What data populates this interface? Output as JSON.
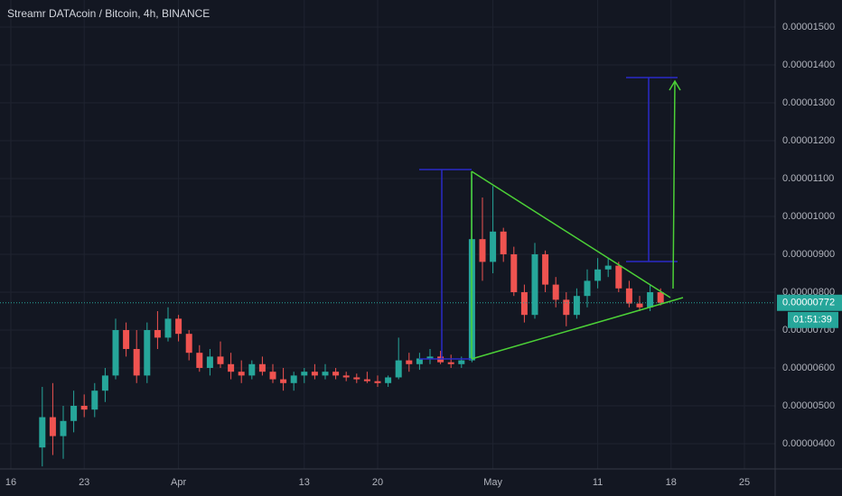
{
  "chart_data": {
    "type": "candlestick",
    "title": "Streamr DATAcoin / Bitcoin, 4h, BINANCE",
    "categories": [
      "16",
      null,
      null,
      null,
      null,
      null,
      null,
      "23",
      null,
      null,
      null,
      null,
      null,
      null,
      null,
      null,
      "Apr",
      null,
      null,
      null,
      null,
      null,
      null,
      null,
      null,
      null,
      null,
      null,
      "13",
      null,
      null,
      null,
      null,
      null,
      null,
      "20",
      null,
      null,
      null,
      null,
      null,
      null,
      null,
      null,
      null,
      null,
      "May",
      null,
      null,
      null,
      null,
      null,
      null,
      null,
      null,
      null,
      "11",
      null,
      null,
      null,
      null,
      null,
      null,
      "18",
      null,
      null,
      null,
      null,
      null,
      null,
      "25"
    ],
    "open": [
      null,
      null,
      null,
      3.9e-06,
      4.7e-06,
      4.2e-06,
      4.6e-06,
      5e-06,
      4.9e-06,
      5.4e-06,
      5.8e-06,
      7e-06,
      6.5e-06,
      5.8e-06,
      7e-06,
      6.8e-06,
      7.3e-06,
      6.9e-06,
      6.4e-06,
      6e-06,
      6.3e-06,
      6.1e-06,
      5.9e-06,
      5.8e-06,
      6.1e-06,
      5.9e-06,
      5.7e-06,
      5.6e-06,
      5.8e-06,
      5.9e-06,
      5.8e-06,
      5.9e-06,
      5.8e-06,
      5.75e-06,
      5.7e-06,
      5.65e-06,
      5.6e-06,
      5.75e-06,
      6.2e-06,
      6.1e-06,
      6.25e-06,
      6.3e-06,
      6.15e-06,
      6.1e-06,
      6.2e-06,
      9.4e-06,
      8.8e-06,
      9.6e-06,
      9e-06,
      8e-06,
      7.4e-06,
      9e-06,
      8.2e-06,
      7.8e-06,
      7.4e-06,
      7.9e-06,
      8.3e-06,
      8.6e-06,
      8.7e-06,
      8.1e-06,
      7.7e-06,
      7.6e-06,
      8e-06,
      null,
      null,
      null,
      null,
      null,
      null,
      null,
      null
    ],
    "high": [
      null,
      null,
      null,
      5.5e-06,
      5.6e-06,
      5e-06,
      5.4e-06,
      5.3e-06,
      5.6e-06,
      6e-06,
      7.3e-06,
      7.2e-06,
      7e-06,
      7.2e-06,
      7.5e-06,
      7.6e-06,
      7.4e-06,
      7e-06,
      6.6e-06,
      6.5e-06,
      6.7e-06,
      6.4e-06,
      6.2e-06,
      6.2e-06,
      6.3e-06,
      6.1e-06,
      6e-06,
      5.9e-06,
      6e-06,
      6.1e-06,
      6.1e-06,
      6e-06,
      5.9e-06,
      5.85e-06,
      5.9e-06,
      5.8e-06,
      5.8e-06,
      6.8e-06,
      6.4e-06,
      6.4e-06,
      6.5e-06,
      6.45e-06,
      6.35e-06,
      6.3e-06,
      1.11e-05,
      1.05e-05,
      1.08e-05,
      9.7e-06,
      9.2e-06,
      8.2e-06,
      9.3e-06,
      9.1e-06,
      8.4e-06,
      8e-06,
      8.1e-06,
      8.6e-06,
      8.9e-06,
      8.9e-06,
      8.8e-06,
      8.3e-06,
      7.9e-06,
      8.2e-06,
      8.1e-06,
      null,
      null,
      null,
      null,
      null,
      null,
      null,
      null
    ],
    "low": [
      null,
      null,
      null,
      3.4e-06,
      3.7e-06,
      3.6e-06,
      4.3e-06,
      4.7e-06,
      4.7e-06,
      5.1e-06,
      5.7e-06,
      6.3e-06,
      5.6e-06,
      5.6e-06,
      6.5e-06,
      6.7e-06,
      6.7e-06,
      6.2e-06,
      5.9e-06,
      5.8e-06,
      6e-06,
      5.7e-06,
      5.6e-06,
      5.7e-06,
      5.8e-06,
      5.6e-06,
      5.4e-06,
      5.4e-06,
      5.6e-06,
      5.7e-06,
      5.7e-06,
      5.7e-06,
      5.65e-06,
      5.6e-06,
      5.6e-06,
      5.5e-06,
      5.5e-06,
      5.7e-06,
      5.9e-06,
      5.95e-06,
      6.1e-06,
      6.1e-06,
      6e-06,
      6e-06,
      6.15e-06,
      8.3e-06,
      8.5e-06,
      8.8e-06,
      7.9e-06,
      7.2e-06,
      7.3e-06,
      8e-06,
      7.6e-06,
      7.1e-06,
      7.3e-06,
      7.6e-06,
      8.1e-06,
      8.4e-06,
      8e-06,
      7.6e-06,
      7.5e-06,
      7.5e-06,
      7.65e-06,
      null,
      null,
      null,
      null,
      null,
      null,
      null,
      null
    ],
    "close": [
      null,
      null,
      null,
      4.7e-06,
      4.2e-06,
      4.6e-06,
      5e-06,
      4.9e-06,
      5.4e-06,
      5.8e-06,
      7e-06,
      6.5e-06,
      5.8e-06,
      7e-06,
      6.8e-06,
      7.3e-06,
      6.9e-06,
      6.4e-06,
      6e-06,
      6.3e-06,
      6.1e-06,
      5.9e-06,
      5.8e-06,
      6.1e-06,
      5.9e-06,
      5.7e-06,
      5.6e-06,
      5.8e-06,
      5.9e-06,
      5.8e-06,
      5.9e-06,
      5.8e-06,
      5.75e-06,
      5.7e-06,
      5.65e-06,
      5.6e-06,
      5.75e-06,
      6.2e-06,
      6.1e-06,
      6.25e-06,
      6.3e-06,
      6.15e-06,
      6.1e-06,
      6.2e-06,
      9.4e-06,
      8.8e-06,
      9.6e-06,
      9e-06,
      8e-06,
      7.4e-06,
      9e-06,
      8.2e-06,
      7.8e-06,
      7.4e-06,
      7.9e-06,
      8.3e-06,
      8.6e-06,
      8.7e-06,
      8.1e-06,
      7.7e-06,
      7.6e-06,
      8e-06,
      7.72e-06,
      null,
      null,
      null,
      null,
      null,
      null,
      null,
      null
    ],
    "up_color": "#26a69a",
    "down_color": "#ef5350",
    "ylim": [
      3.333e-06,
      1.5714e-05
    ],
    "yticks": [
      {
        "value": 4e-06,
        "label": "0.00000400"
      },
      {
        "value": 5e-06,
        "label": "0.00000500"
      },
      {
        "value": 6e-06,
        "label": "0.00000600"
      },
      {
        "value": 7e-06,
        "label": "0.00000700"
      },
      {
        "value": 8e-06,
        "label": "0.00000800"
      },
      {
        "value": 9e-06,
        "label": "0.00000900"
      },
      {
        "value": 1e-05,
        "label": "0.00001000"
      },
      {
        "value": 1.1e-05,
        "label": "0.00001100"
      },
      {
        "value": 1.2e-05,
        "label": "0.00001200"
      },
      {
        "value": 1.3e-05,
        "label": "0.00001300"
      },
      {
        "value": 1.4e-05,
        "label": "0.00001400"
      },
      {
        "value": 1.5e-05,
        "label": "0.00001500"
      }
    ],
    "grid": true,
    "last_price": {
      "value": 7.72e-06,
      "label": "0.00000772"
    },
    "countdown": "01:51:39"
  }
}
